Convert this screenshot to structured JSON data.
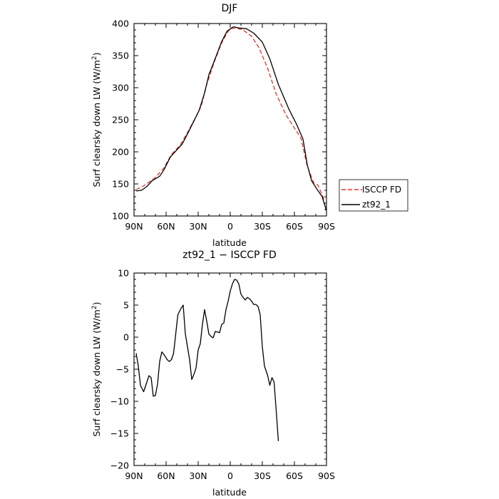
{
  "chart_data": [
    {
      "type": "line",
      "title": "DJF",
      "xlabel": "latitude",
      "ylabel": "Surf clearsky down LW (W/m²)",
      "ylabel_text": "Surf clearsky down LW (W/m",
      "ylabel_sup": "2",
      "ylabel_end": ")",
      "x_ticks": [
        {
          "value": 90,
          "label": "90N"
        },
        {
          "value": 60,
          "label": "60N"
        },
        {
          "value": 30,
          "label": "30N"
        },
        {
          "value": 0,
          "label": "0"
        },
        {
          "value": -30,
          "label": "30S"
        },
        {
          "value": -60,
          "label": "60S"
        },
        {
          "value": -90,
          "label": "90S"
        }
      ],
      "y_ticks": [
        100,
        150,
        200,
        250,
        300,
        350,
        400
      ],
      "xlim": [
        90,
        -90
      ],
      "ylim": [
        100,
        400
      ],
      "legend_position": "right",
      "series": [
        {
          "name": "ISCCP FD",
          "color": "#e8322b",
          "dash": "dashed",
          "points": [
            [
              88,
              141
            ],
            [
              80,
              148
            ],
            [
              70,
              160
            ],
            [
              62,
              175
            ],
            [
              55,
              196
            ],
            [
              47,
              210
            ],
            [
              40,
              230
            ],
            [
              32,
              255
            ],
            [
              27,
              272
            ],
            [
              22,
              305
            ],
            [
              15,
              340
            ],
            [
              8,
              370
            ],
            [
              3,
              385
            ],
            [
              0,
              392
            ],
            [
              -5,
              393
            ],
            [
              -12,
              390
            ],
            [
              -20,
              380
            ],
            [
              -27,
              362
            ],
            [
              -35,
              330
            ],
            [
              -43,
              290
            ],
            [
              -52,
              258
            ],
            [
              -60,
              237
            ],
            [
              -66,
              222
            ],
            [
              -72,
              178
            ],
            [
              -78,
              152
            ],
            [
              -82,
              148
            ],
            [
              -88,
              125
            ]
          ]
        },
        {
          "name": "zt92_1",
          "color": "#000000",
          "dash": "solid",
          "points": [
            [
              88,
              139
            ],
            [
              83,
              140
            ],
            [
              78,
              146
            ],
            [
              73,
              155
            ],
            [
              66,
              162
            ],
            [
              62,
              172
            ],
            [
              56,
              192
            ],
            [
              50,
              203
            ],
            [
              45,
              212
            ],
            [
              40,
              228
            ],
            [
              34,
              248
            ],
            [
              29,
              265
            ],
            [
              24,
              292
            ],
            [
              20,
              320
            ],
            [
              13,
              350
            ],
            [
              8,
              372
            ],
            [
              3,
              388
            ],
            [
              -3,
              395
            ],
            [
              -8,
              393
            ],
            [
              -15,
              392
            ],
            [
              -22,
              385
            ],
            [
              -30,
              371
            ],
            [
              -37,
              345
            ],
            [
              -45,
              305
            ],
            [
              -55,
              266
            ],
            [
              -62,
              243
            ],
            [
              -68,
              220
            ],
            [
              -72,
              180
            ],
            [
              -76,
              155
            ],
            [
              -81,
              142
            ],
            [
              -86,
              130
            ],
            [
              -90,
              108
            ]
          ]
        }
      ]
    },
    {
      "type": "line",
      "title": "zt92_1 − ISCCP FD",
      "xlabel": "latitude",
      "ylabel": "Surf clearsky down LW (W/m²)",
      "ylabel_text": "Surf clearsky down LW (W/m",
      "ylabel_sup": "2",
      "ylabel_end": ")",
      "x_ticks": [
        {
          "value": 90,
          "label": "90N"
        },
        {
          "value": 60,
          "label": "60N"
        },
        {
          "value": 30,
          "label": "30N"
        },
        {
          "value": 0,
          "label": "0"
        },
        {
          "value": -30,
          "label": "30S"
        },
        {
          "value": -60,
          "label": "60S"
        },
        {
          "value": -90,
          "label": "90S"
        }
      ],
      "y_ticks": [
        {
          "value": 10,
          "label": "10"
        },
        {
          "value": 5,
          "label": "5"
        },
        {
          "value": 0,
          "label": "0"
        },
        {
          "value": -5,
          "label": "−5"
        },
        {
          "value": -10,
          "label": "−10"
        },
        {
          "value": -15,
          "label": "−15"
        },
        {
          "value": -20,
          "label": "−20"
        }
      ],
      "xlim": [
        90,
        -90
      ],
      "ylim": [
        -20,
        10
      ],
      "series": [
        {
          "name": "zt92_1 − ISCCP FD",
          "color": "#000000",
          "dash": "solid",
          "points": [
            [
              88,
              -2.5
            ],
            [
              86,
              -4.5
            ],
            [
              84,
              -7.5
            ],
            [
              81,
              -8.5
            ],
            [
              78,
              -7.0
            ],
            [
              76,
              -6.0
            ],
            [
              74,
              -6.3
            ],
            [
              72,
              -9.2
            ],
            [
              70,
              -9.1
            ],
            [
              68,
              -7.3
            ],
            [
              66,
              -3.8
            ],
            [
              64,
              -2.3
            ],
            [
              62,
              -2.7
            ],
            [
              59,
              -3.5
            ],
            [
              57,
              -3.8
            ],
            [
              55,
              -3.5
            ],
            [
              53,
              -2.5
            ],
            [
              51,
              0.5
            ],
            [
              49,
              3.5
            ],
            [
              46,
              4.5
            ],
            [
              44,
              5.0
            ],
            [
              42,
              0.5
            ],
            [
              40,
              -1.5
            ],
            [
              38,
              -3.5
            ],
            [
              36,
              -6.6
            ],
            [
              34,
              -5.8
            ],
            [
              32,
              -4.8
            ],
            [
              30,
              -2.0
            ],
            [
              28,
              -1.0
            ],
            [
              26,
              2.0
            ],
            [
              24,
              4.3
            ],
            [
              22,
              2.5
            ],
            [
              20,
              0.5
            ],
            [
              18,
              0.1
            ],
            [
              16,
              -0.1
            ],
            [
              14,
              0.9
            ],
            [
              12,
              0.8
            ],
            [
              10,
              0.7
            ],
            [
              8,
              2.0
            ],
            [
              6,
              2.2
            ],
            [
              4,
              4.3
            ],
            [
              2,
              5.6
            ],
            [
              0,
              7.2
            ],
            [
              -2,
              8.3
            ],
            [
              -4,
              9.0
            ],
            [
              -6,
              8.9
            ],
            [
              -8,
              8.3
            ],
            [
              -10,
              6.7
            ],
            [
              -12,
              6.2
            ],
            [
              -14,
              5.8
            ],
            [
              -16,
              6.2
            ],
            [
              -18,
              6.0
            ],
            [
              -20,
              5.6
            ],
            [
              -22,
              5.1
            ],
            [
              -24,
              5.1
            ],
            [
              -26,
              4.8
            ],
            [
              -28,
              3.5
            ],
            [
              -30,
              -1.5
            ],
            [
              -32,
              -4.5
            ],
            [
              -35,
              -6.0
            ],
            [
              -37,
              -7.5
            ],
            [
              -39,
              -6.3
            ],
            [
              -41,
              -7.0
            ],
            [
              -43,
              -11.5
            ],
            [
              -45,
              -16.2
            ]
          ]
        }
      ]
    }
  ]
}
